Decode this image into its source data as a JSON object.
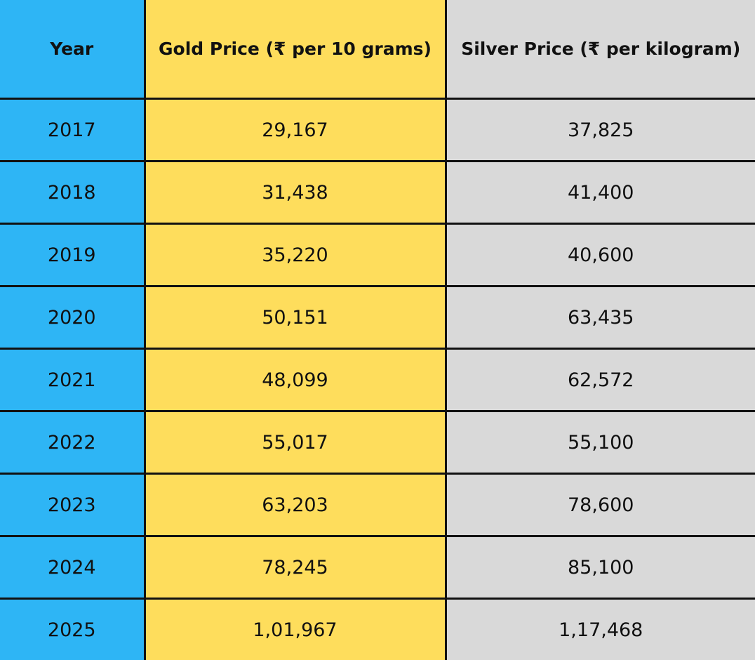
{
  "colors": {
    "year_column": "#2eb5f5",
    "gold_column": "#fedd5c",
    "silver_column": "#d9d9d9",
    "border": "#111111",
    "text": "#111111"
  },
  "chart_data": {
    "type": "table",
    "columns": [
      "Year",
      "Gold Price (₹ per 10 grams)",
      "Silver Price (₹ per kilogram)"
    ],
    "rows": [
      [
        "2017",
        "29,167",
        "37,825"
      ],
      [
        "2018",
        "31,438",
        "41,400"
      ],
      [
        "2019",
        "35,220",
        "40,600"
      ],
      [
        "2020",
        "50,151",
        "63,435"
      ],
      [
        "2021",
        "48,099",
        "62,572"
      ],
      [
        "2022",
        "55,017",
        "55,100"
      ],
      [
        "2023",
        "63,203",
        "78,600"
      ],
      [
        "2024",
        "78,245",
        "85,100"
      ],
      [
        "2025",
        "1,01,967",
        "1,17,468"
      ]
    ]
  }
}
